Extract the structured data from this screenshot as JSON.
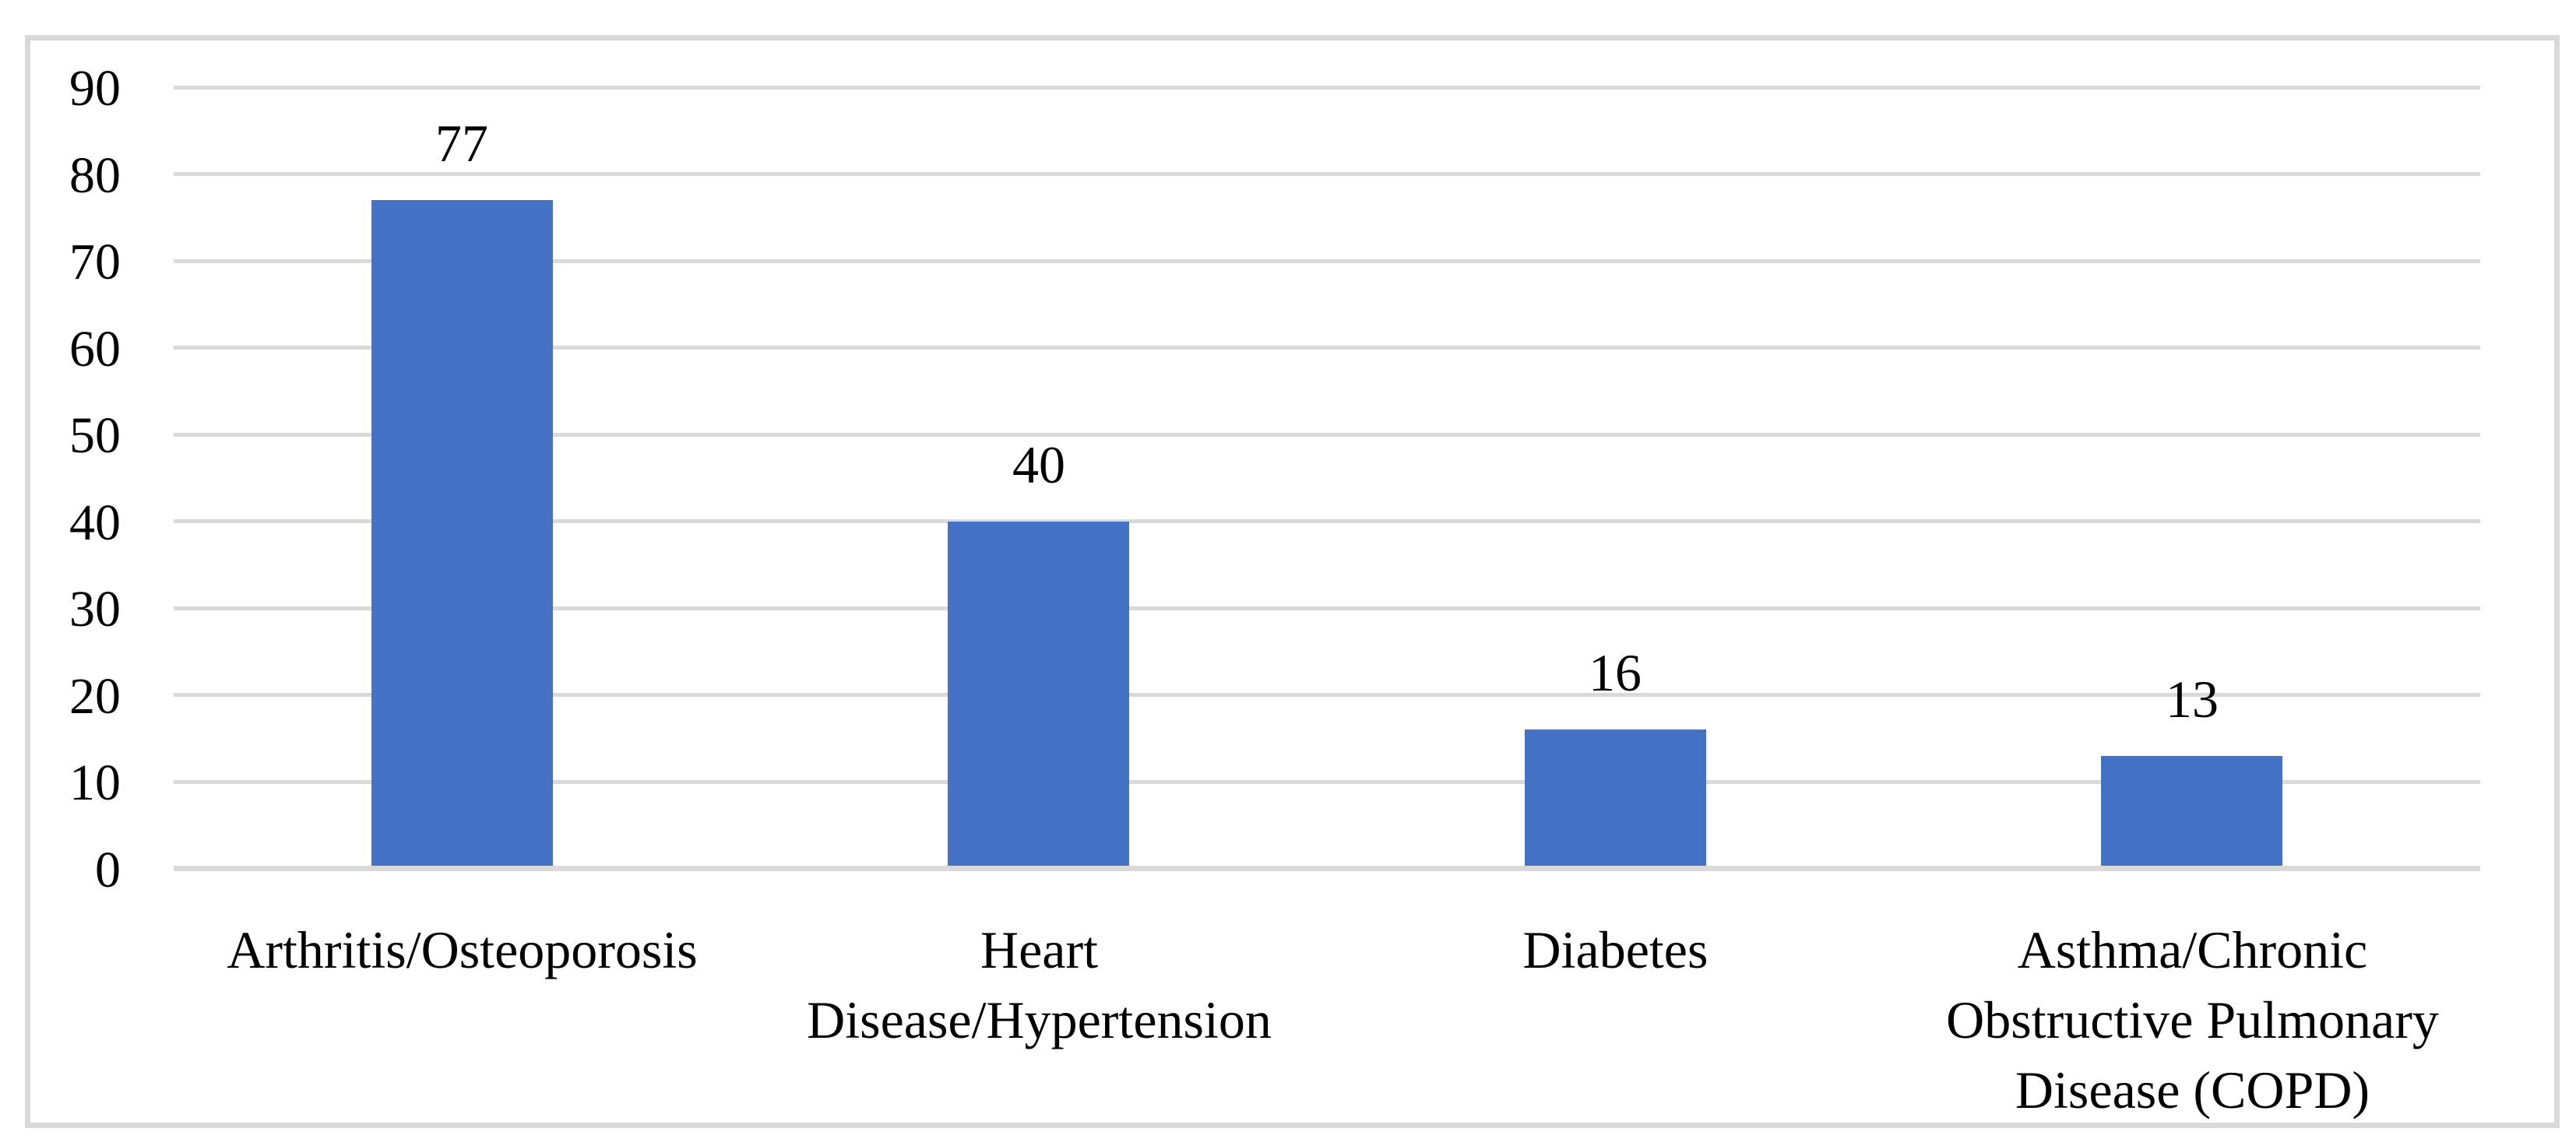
{
  "figure": {
    "background_color": "#FFFFFF",
    "border_color": "#D9D9D9"
  },
  "chart_data": {
    "type": "bar",
    "title": "",
    "xlabel": "",
    "ylabel": "",
    "categories": [
      "Arthritis/Osteoporosis",
      "Heart Disease/Hypertension",
      "Diabetes",
      "Asthma/Chronic Obstructive Pulmonary Disease (COPD)"
    ],
    "category_lines": [
      [
        "Arthritis/Osteoporosis"
      ],
      [
        "Heart",
        "Disease/Hypertension"
      ],
      [
        "Diabetes"
      ],
      [
        "Asthma/Chronic",
        "Obstructive Pulmonary",
        "Disease (COPD)"
      ]
    ],
    "values": [
      77,
      40,
      16,
      13
    ],
    "data_labels": [
      "77",
      "40",
      "16",
      "13"
    ],
    "data_labels_position": "above-bars",
    "ylim": [
      0,
      90
    ],
    "yticks": [
      0,
      10,
      20,
      30,
      40,
      50,
      60,
      70,
      80,
      90
    ],
    "grid": "horizontal",
    "legend": "none",
    "bar_color": "#4472C4",
    "gridline_color": "#D9D9D9",
    "axis_line_color": "#D9D9D9",
    "text_color": "#000000"
  }
}
